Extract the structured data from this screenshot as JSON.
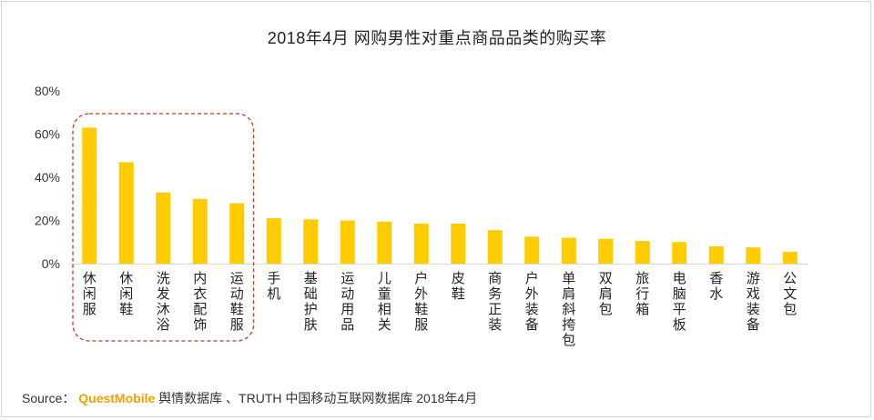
{
  "chart_data": {
    "type": "bar",
    "title": "2018年4月 网购男性对重点商品品类的购买率",
    "categories": [
      "休闲服",
      "休闲鞋",
      "洗发沐浴",
      "内衣配饰",
      "运动鞋服",
      "手机",
      "基础护肤",
      "运动用品",
      "儿童相关",
      "户外鞋服",
      "皮鞋",
      "商务正装",
      "户外装备",
      "单肩斜挎包",
      "双肩包",
      "旅行箱",
      "电脑平板",
      "香水",
      "游戏装备",
      "公文包"
    ],
    "values": [
      63,
      47,
      33,
      30,
      28,
      21,
      20.5,
      20,
      19.5,
      18.5,
      18.5,
      15.5,
      12.5,
      12,
      11.5,
      10.5,
      10,
      8,
      7.5,
      5.5
    ],
    "ylim": [
      0,
      80
    ],
    "yticks": [
      0,
      20,
      40,
      60,
      80
    ],
    "ytick_labels": [
      "0%",
      "20%",
      "40%",
      "60%",
      "80%"
    ],
    "xlabel": "",
    "ylabel": "",
    "highlighted_categories": [
      "休闲服",
      "休闲鞋",
      "洗发沐浴",
      "内衣配饰",
      "运动鞋服"
    ],
    "bar_color": "#FFCC00",
    "highlight_color": "#C0392B"
  },
  "source": {
    "prefix": "Source：",
    "brand": "QuestMobile",
    "text": "舆情数据库 、TRUTH 中国移动互联网数据库 2018年4月"
  }
}
